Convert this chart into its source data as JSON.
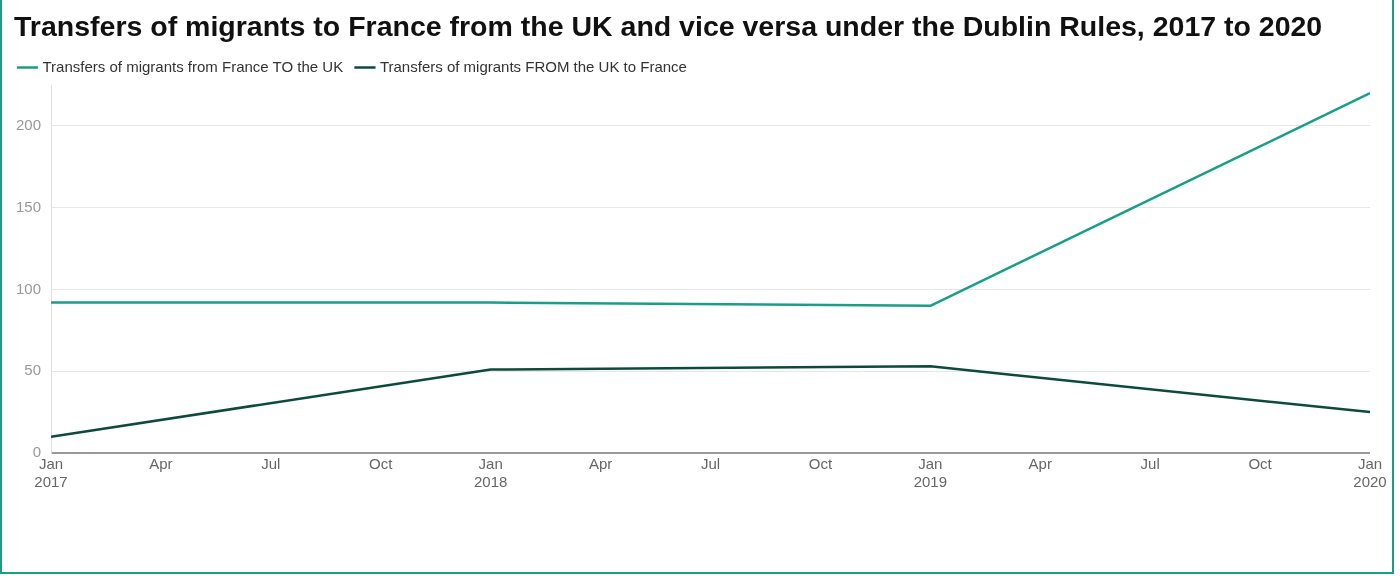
{
  "chart_data": {
    "type": "line",
    "title": "Transfers of migrants to France from the UK and vice versa under the Dublin Rules, 2017 to 2020",
    "x": [
      "2017-01",
      "2018-01",
      "2019-01",
      "2020-01"
    ],
    "series": [
      {
        "name": "Transfers of migrants from France TO the UK",
        "color": "#1a9e85",
        "values": [
          92,
          92,
          90,
          220
        ]
      },
      {
        "name": "Transfers of migrants FROM the UK to France",
        "color": "#0d4a3a",
        "values": [
          10,
          51,
          53,
          25
        ]
      }
    ],
    "xlim": [
      "2017-01",
      "2020-01"
    ],
    "xticks": [
      {
        "value": "2017-01",
        "label": "Jan\n2017"
      },
      {
        "value": "2017-04",
        "label": "Apr"
      },
      {
        "value": "2017-07",
        "label": "Jul"
      },
      {
        "value": "2017-10",
        "label": "Oct"
      },
      {
        "value": "2018-01",
        "label": "Jan\n2018"
      },
      {
        "value": "2018-04",
        "label": "Apr"
      },
      {
        "value": "2018-07",
        "label": "Jul"
      },
      {
        "value": "2018-10",
        "label": "Oct"
      },
      {
        "value": "2019-01",
        "label": "Jan\n2019"
      },
      {
        "value": "2019-04",
        "label": "Apr"
      },
      {
        "value": "2019-07",
        "label": "Jul"
      },
      {
        "value": "2019-10",
        "label": "Oct"
      },
      {
        "value": "2020-01",
        "label": "Jan\n2020"
      }
    ],
    "ylim": [
      0,
      225
    ],
    "yticks": [
      0,
      50,
      100,
      150,
      200
    ],
    "grid": "y",
    "legend": "top left",
    "marker": "none",
    "line_style": "solid"
  }
}
